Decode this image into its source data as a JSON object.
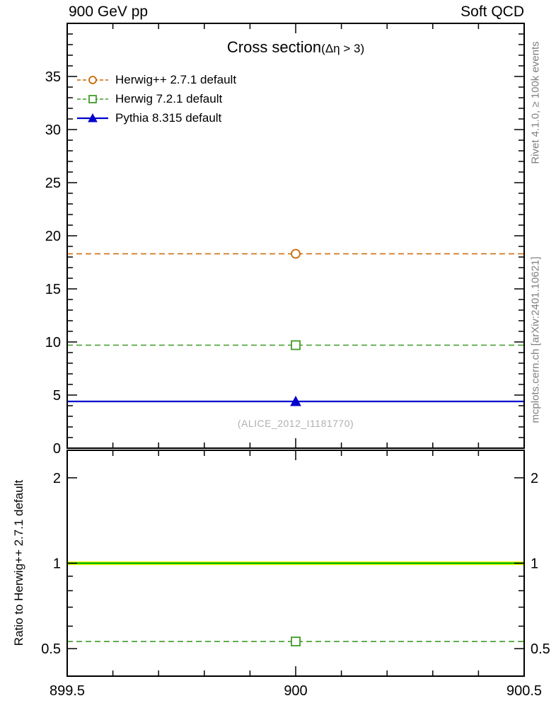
{
  "header": {
    "beam_label": "900 GeV pp",
    "process_label": "Soft QCD"
  },
  "plot": {
    "title": "Cross section",
    "title_suffix": "(Δη > 3)",
    "watermark": "(ALICE_2012_I1181770)",
    "right_note_top": "Rivet 4.1.0, ≥ 100k events",
    "right_note_bottom": "mcplots.cern.ch [arXiv:2401.10621]",
    "ratio_ylabel": "Ratio to Herwig++ 2.7.1 default"
  },
  "colors": {
    "herwigpp": "#cc6600",
    "herwig7": "#3f9b28",
    "pythia": "#0000cc",
    "band_fill": "#ffff00",
    "band_line": "#00b300",
    "frame": "#000000",
    "muted_text": "#808080",
    "watermark_text": "#b0b0b0"
  },
  "chart_data": [
    {
      "type": "line",
      "panel": "main",
      "title": "Cross section(Δη > 3)",
      "xlim": [
        899.5,
        900.5
      ],
      "ylim": [
        0,
        40
      ],
      "xscale": "linear",
      "yscale": "linear",
      "grid": false,
      "legend_position": "top-left",
      "x_ticks": [
        {
          "v": 899.5,
          "label": "899.5"
        },
        {
          "v": 900,
          "label": "900"
        },
        {
          "v": 900.5,
          "label": "900.5"
        }
      ],
      "x_minor_ticks": [
        899.6,
        899.7,
        899.8,
        899.9,
        900.1,
        900.2,
        900.3,
        900.4
      ],
      "y_ticks": [
        {
          "v": 0,
          "label": "0"
        },
        {
          "v": 5,
          "label": "5"
        },
        {
          "v": 10,
          "label": "10"
        },
        {
          "v": 15,
          "label": "15"
        },
        {
          "v": 20,
          "label": "20"
        },
        {
          "v": 25,
          "label": "25"
        },
        {
          "v": 30,
          "label": "30"
        },
        {
          "v": 35,
          "label": "35"
        }
      ],
      "y_minor_step": 1,
      "series": [
        {
          "id": "herwigpp",
          "name": "Herwig++ 2.7.1 default",
          "color": "#cc6600",
          "line": "dashed",
          "line_width": 1.6,
          "marker": "open-circle",
          "x": [
            899.5,
            900.5
          ],
          "y_const": 18.3,
          "marker_at": {
            "x": 900,
            "y": 18.3
          }
        },
        {
          "id": "herwig7",
          "name": "Herwig 7.2.1 default",
          "color": "#3f9b28",
          "line": "dashed",
          "line_width": 1.6,
          "marker": "open-square",
          "x": [
            899.5,
            900.5
          ],
          "y_const": 9.7,
          "marker_at": {
            "x": 900,
            "y": 9.7
          }
        },
        {
          "id": "pythia",
          "name": "Pythia 8.315 default",
          "color": "#0000cc",
          "line": "solid",
          "line_width": 2.2,
          "marker": "filled-triangle",
          "x": [
            899.5,
            900.5
          ],
          "y_const": 4.4,
          "marker_at": {
            "x": 900,
            "y": 4.4
          }
        }
      ],
      "watermark": "(ALICE_2012_I1181770)"
    },
    {
      "type": "line",
      "panel": "ratio",
      "ylabel": "Ratio to Herwig++ 2.7.1 default",
      "xlim": [
        899.5,
        900.5
      ],
      "ylim": [
        0.4,
        2.5
      ],
      "xscale": "linear",
      "yscale": "log",
      "grid": false,
      "y_labels_both_sides": true,
      "x_ticks": [
        {
          "v": 899.5,
          "label": "899.5"
        },
        {
          "v": 900,
          "label": "900"
        },
        {
          "v": 900.5,
          "label": "900.5"
        }
      ],
      "x_minor_ticks": [
        899.6,
        899.7,
        899.8,
        899.9,
        900.1,
        900.2,
        900.3,
        900.4
      ],
      "y_ticks": [
        {
          "v": 0.5,
          "label": "0.5"
        },
        {
          "v": 1,
          "label": "1"
        },
        {
          "v": 2,
          "label": "2"
        }
      ],
      "y_minor_ticks": [
        0.6,
        0.7,
        0.8,
        0.9
      ],
      "reference_band": {
        "reference": "herwigpp",
        "center": 1,
        "half_width_frac": 0.015,
        "fill": "#ffff00",
        "line_color": "#00b300"
      },
      "series": [
        {
          "id": "herwig7-ratio",
          "name": "Herwig 7.2.1 default / Herwig++ 2.7.1 default",
          "color": "#3f9b28",
          "line": "dashed",
          "line_width": 1.6,
          "marker": "open-square",
          "x": [
            899.5,
            900.5
          ],
          "y_const": 0.53,
          "marker_at": {
            "x": 900,
            "y": 0.53
          }
        }
      ]
    }
  ]
}
